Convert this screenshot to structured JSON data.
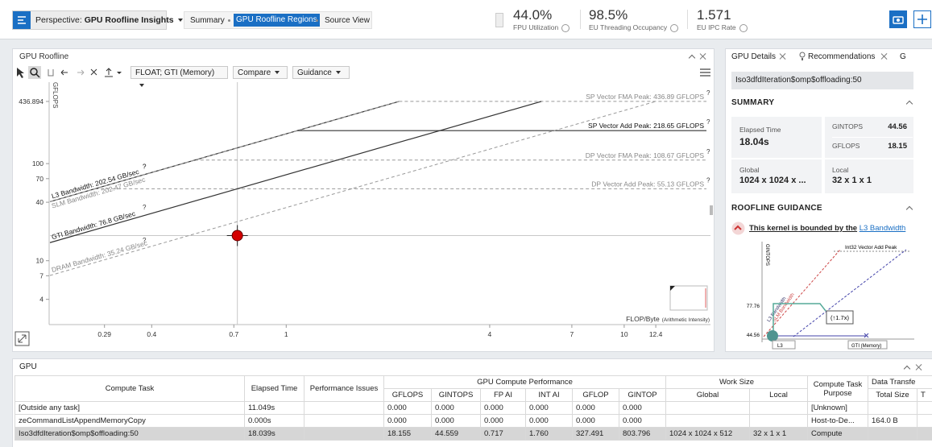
{
  "header": {
    "perspective_label": "Perspective:",
    "perspective": "GPU Roofline Insights",
    "tabs": [
      "Summary",
      "GPU Roofline Regions",
      "Source View"
    ],
    "metrics": [
      {
        "value": "44.0%",
        "label": "FPU Utilization"
      },
      {
        "value": "98.5%",
        "label": "EU Threading Occupancy"
      },
      {
        "value": "1.571",
        "label": "EU IPC Rate"
      }
    ]
  },
  "roofline_panel": {
    "title": "GPU Roofline",
    "toolbar": {
      "data_type": "FLOAT; GTI (Memory)",
      "compare": "Compare",
      "guidance": "Guidance"
    }
  },
  "chart_data": {
    "type": "roofline",
    "y_label": "GFLOPS",
    "x_label": "FLOP/Byte",
    "x_label_note": "(Arithmetic Intensity)",
    "log_scale": true,
    "xlim": [
      0.2,
      18
    ],
    "ylim": [
      2.2,
      570
    ],
    "xticks": [
      0.29,
      0.4,
      0.7,
      1,
      4,
      7,
      10,
      12.4
    ],
    "yticks": [
      4,
      7,
      10,
      40,
      70,
      100,
      436.894
    ],
    "help_mark": "?",
    "compute_roofs": [
      {
        "label": "SP Vector FMA Peak: 436.89 GFLOPS",
        "value": 436.89,
        "dashed": true
      },
      {
        "label": "SP Vector Add Peak: 218.65 GFLOPS",
        "value": 218.65,
        "dashed": false
      },
      {
        "label": "DP Vector FMA Peak: 108.67 GFLOPS",
        "value": 108.67,
        "dashed": true
      },
      {
        "label": "DP Vector Add Peak: 55.13 GFLOPS",
        "value": 55.13,
        "dashed": true
      }
    ],
    "memory_roofs": [
      {
        "label": "L3 Bandwidth: 202.54 GB/sec",
        "value": 202.54,
        "dashed": false
      },
      {
        "label": "SLM Bandwidth: 202.47 GB/sec",
        "value": 202.47,
        "dashed": true
      },
      {
        "label": "GTI Bandwidth: 76.8 GB/sec",
        "value": 76.8,
        "dashed": false
      },
      {
        "label": "DRAM Bandwidth: 35.24 GB/sec",
        "value": 35.24,
        "dashed": true
      }
    ],
    "kernel": {
      "x": 0.717,
      "y": 18.155,
      "color": "#d40000"
    }
  },
  "details_panel": {
    "tabs": [
      "GPU Details",
      "Recommendations",
      "G"
    ],
    "kernel_name": "Iso3dfdIteration$omp$offloading:50",
    "summary_title": "SUMMARY",
    "elapsed_label": "Elapsed Time",
    "elapsed_value": "18.04s",
    "gintops_label": "GINTOPS",
    "gintops_value": "44.56",
    "gflops_label": "GFLOPS",
    "gflops_value": "18.15",
    "global_label": "Global",
    "global_value": "1024 x 1024 x ...",
    "local_label": "Local",
    "local_value": "32 x 1 x 1",
    "guidance_title": "ROOFLINE GUIDANCE",
    "guidance_text": "This kernel is bounded by the",
    "guidance_link": "L3 Bandwidth",
    "mini_chart": {
      "y_label": "GINTOPS",
      "peak_label": "Int32 Vector Add Peak",
      "tick_high": "77.76",
      "tick_low": "44.56",
      "l3_label": "L3 Bandwidth",
      "slm_label": "SLM Bandwidth",
      "gain": "(↑1.7x)",
      "x_left": "L3",
      "x_right": "GTI (Memory)"
    }
  },
  "gpu_panel": {
    "title": "GPU",
    "groups": {
      "compute_performance": "GPU Compute Performance",
      "work_size": "Work Size",
      "data_transfer": "Data Transfe"
    },
    "columns": [
      "Compute Task",
      "Elapsed Time",
      "Performance Issues",
      "GFLOPS",
      "GINTOPS",
      "FP AI",
      "INT AI",
      "GFLOP",
      "GINTOP",
      "Global",
      "Local",
      "Compute Task Purpose",
      "Total Size",
      "T"
    ],
    "rows": [
      [
        "[Outside any task]",
        "11.049s",
        null,
        "0.000",
        "0.000",
        "0.000",
        "0.000",
        "0.000",
        "0.000",
        null,
        null,
        "[Unknown]",
        null,
        null
      ],
      [
        "zeCommandListAppendMemoryCopy",
        "0.000s",
        null,
        "0.000",
        "0.000",
        "0.000",
        "0.000",
        "0.000",
        "0.000",
        null,
        null,
        "Host-to-De...",
        "164.0 B",
        null
      ],
      [
        "Iso3dfdIteration$omp$offloading:50",
        "18.039s",
        null,
        "18.155",
        "44.559",
        "0.717",
        "1.760",
        "327.491",
        "803.796",
        "1024 x 1024 x 512",
        "32 x 1 x 1",
        "Compute",
        null,
        null
      ]
    ]
  }
}
